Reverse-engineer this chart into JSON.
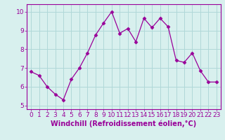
{
  "x": [
    0,
    1,
    2,
    3,
    4,
    5,
    6,
    7,
    8,
    9,
    10,
    11,
    12,
    13,
    14,
    15,
    16,
    17,
    18,
    19,
    20,
    21,
    22,
    23
  ],
  "y": [
    6.8,
    6.6,
    6.0,
    5.6,
    5.3,
    6.4,
    7.0,
    7.8,
    8.75,
    9.4,
    10.0,
    8.85,
    9.1,
    8.4,
    9.65,
    9.15,
    9.65,
    9.2,
    7.4,
    7.3,
    7.8,
    6.85,
    6.25,
    6.25
  ],
  "line_color": "#990099",
  "marker": "D",
  "marker_size": 2.5,
  "bg_color": "#d8f0ee",
  "grid_color": "#b0d8d8",
  "xlabel": "Windchill (Refroidissement éolien,°C)",
  "xlim": [
    -0.5,
    23.5
  ],
  "ylim": [
    4.8,
    10.4
  ],
  "yticks": [
    5,
    6,
    7,
    8,
    9,
    10
  ],
  "xticks": [
    0,
    1,
    2,
    3,
    4,
    5,
    6,
    7,
    8,
    9,
    10,
    11,
    12,
    13,
    14,
    15,
    16,
    17,
    18,
    19,
    20,
    21,
    22,
    23
  ],
  "tick_color": "#990099",
  "label_color": "#990099",
  "axis_color": "#990099",
  "font_size": 6.5,
  "xlabel_fontsize": 7.0
}
